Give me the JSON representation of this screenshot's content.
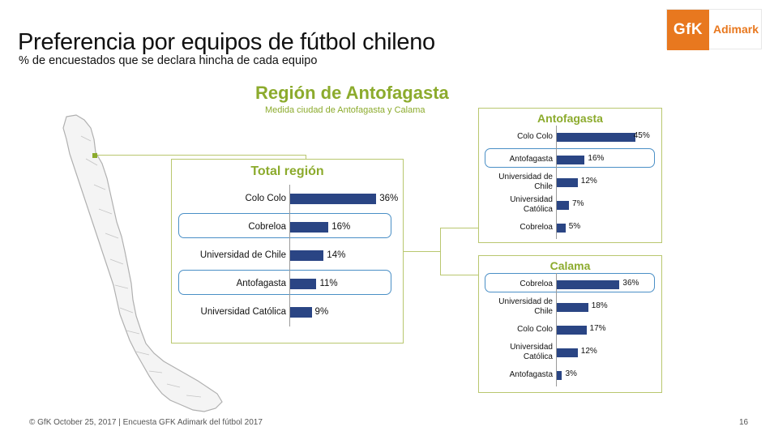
{
  "header": {
    "title": "Preferencia por equipos de fútbol chileno",
    "subtitle": "% de encuestados que se declara hincha de cada equipo"
  },
  "logo": {
    "mark": "GfK",
    "text": "Adimark"
  },
  "region": {
    "title": "Región de Antofagasta",
    "subtitle": "Medida ciudad de Antofagasta y Calama"
  },
  "chart_data": [
    {
      "type": "bar",
      "orientation": "horizontal",
      "title": "Total región",
      "categories": [
        "Colo Colo",
        "Cobreloa",
        "Universidad de Chile",
        "Antofagasta",
        "Universidad Católica"
      ],
      "values": [
        36,
        16,
        14,
        11,
        9
      ],
      "value_labels": [
        "36%",
        "16%",
        "14%",
        "11%",
        "9%"
      ],
      "highlighted": [
        "Cobreloa",
        "Antofagasta"
      ],
      "bar_color": "#2a4584"
    },
    {
      "type": "bar",
      "orientation": "horizontal",
      "title": "Antofagasta",
      "categories": [
        "Colo Colo",
        "Antofagasta",
        "Universidad de Chile",
        "Universidad Católica",
        "Cobreloa"
      ],
      "values": [
        45,
        16,
        12,
        7,
        5
      ],
      "value_labels": [
        "45%",
        "16%",
        "12%",
        "7%",
        "5%"
      ],
      "highlighted": [
        "Antofagasta"
      ],
      "bar_color": "#2a4584"
    },
    {
      "type": "bar",
      "orientation": "horizontal",
      "title": "Calama",
      "categories": [
        "Cobreloa",
        "Universidad de Chile",
        "Colo Colo",
        "Universidad Católica",
        "Antofagasta"
      ],
      "values": [
        36,
        18,
        17,
        12,
        3
      ],
      "value_labels": [
        "36%",
        "18%",
        "17%",
        "12%",
        "3%"
      ],
      "highlighted": [
        "Cobreloa"
      ],
      "bar_color": "#2a4584"
    }
  ],
  "colors": {
    "accent_green": "#8cab2d",
    "panel_border": "#b9c76f",
    "highlight_blue": "#4a8fc6",
    "bar_blue": "#2a4584",
    "logo_orange": "#e8781f"
  },
  "footer": {
    "text": "© GfK October 25, 2017 | Encuesta GFK Adimark del fútbol 2017",
    "page": "16"
  }
}
